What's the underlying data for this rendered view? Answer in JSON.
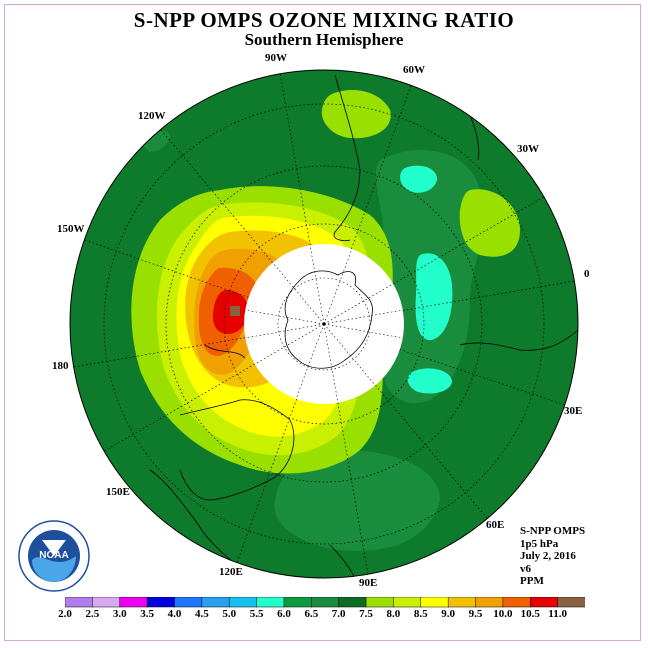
{
  "title": "S-NPP OMPS OZONE MIXING RATIO",
  "subtitle": "Southern Hemisphere",
  "lon_labels": [
    "90W",
    "60W",
    "30W",
    "0",
    "30E",
    "60E",
    "90E",
    "120E",
    "150E",
    "180",
    "150W",
    "120W"
  ],
  "logo": {
    "text": "NOAA"
  },
  "info": {
    "instrument": "S-NPP OMPS",
    "level": "1p5 hPa",
    "date": "July 2, 2016",
    "version": "v6",
    "units": "PPM"
  },
  "colorbar": {
    "labels": [
      "2.0",
      "2.5",
      "3.0",
      "3.5",
      "4.0",
      "4.5",
      "5.0",
      "5.5",
      "6.0",
      "6.5",
      "7.0",
      "7.5",
      "8.0",
      "8.5",
      "9.0",
      "9.5",
      "10.0",
      "10.5",
      "11.0"
    ],
    "colors": [
      "#b07ee8",
      "#d9a8f2",
      "#ee00ee",
      "#0000dd",
      "#1e78ff",
      "#28a0f0",
      "#18c0f0",
      "#22ffcc",
      "#0e9a3e",
      "#1a8c3d",
      "#0e6a25",
      "#99e000",
      "#c8f000",
      "#ffff00",
      "#f2c200",
      "#f0a000",
      "#f06000",
      "#e60000",
      "#8a6040"
    ]
  }
}
